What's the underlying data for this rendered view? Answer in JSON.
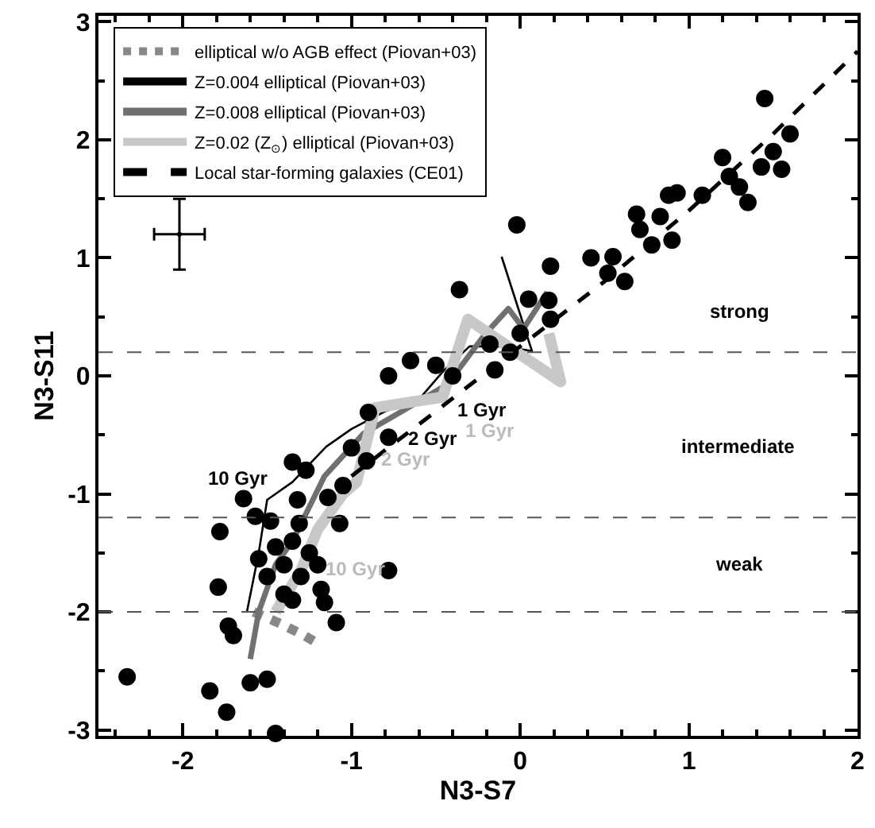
{
  "chart_data": {
    "type": "scatter",
    "xlabel": "N3-S7",
    "ylabel": "N3-S11",
    "xlim": [
      -2.5,
      2
    ],
    "ylim": [
      -3.05,
      3.05
    ],
    "xticks": [
      -2,
      -1,
      0,
      1,
      2
    ],
    "yticks": [
      -3,
      -2,
      -1,
      0,
      1,
      2,
      3
    ],
    "legend": "top left",
    "series": [
      {
        "name": "elliptical w/o AGB effect (Piovan+03)",
        "type": "line",
        "color": "#888888",
        "line_style": "dotted",
        "marker": "none",
        "x": [
          -1.58,
          -1.5,
          -1.42,
          -1.35,
          -1.28,
          -1.22
        ],
        "values": [
          -2.0,
          -2.05,
          -2.1,
          -2.15,
          -2.2,
          -2.25
        ]
      },
      {
        "name": "Z=0.004 elliptical (Piovan+03)",
        "type": "line",
        "color": "#000000",
        "line_style": "solid",
        "marker": "none",
        "x": [
          -1.62,
          -1.55,
          -1.5,
          -1.35,
          -1.25,
          -1.15,
          -1.0,
          -0.8,
          -0.6,
          -0.45,
          -0.3,
          -0.1,
          0.07,
          -0.11
        ],
        "values": [
          -2.0,
          -1.5,
          -1.05,
          -0.9,
          -0.75,
          -0.6,
          -0.45,
          -0.3,
          -0.2,
          0.05,
          0.25,
          0.25,
          0.21,
          1.01
        ]
      },
      {
        "name": "Z=0.008 elliptical (Piovan+03)",
        "type": "line",
        "color": "#707070",
        "line_style": "solid",
        "marker": "none",
        "x": [
          -1.6,
          -1.55,
          -1.45,
          -1.35,
          -1.16,
          -0.93,
          -0.7,
          -0.43,
          -0.21,
          -0.07,
          0.02,
          0.16
        ],
        "values": [
          -2.4,
          -2.0,
          -1.6,
          -1.4,
          -0.85,
          -0.49,
          -0.3,
          -0.07,
          0.35,
          0.57,
          0.4,
          0.71
        ]
      },
      {
        "name": "Z=0.02 (Z$_{⊙}$) elliptical (Piovan+03)",
        "type": "line",
        "color": "#c8c8c8",
        "line_style": "solid",
        "marker": "none",
        "x": [
          -1.45,
          -1.3,
          -1.2,
          -1.05,
          -0.97,
          -0.86,
          -0.46,
          -0.31,
          0.24,
          0.17
        ],
        "values": [
          -2.0,
          -1.65,
          -1.3,
          -1.0,
          -0.9,
          -0.27,
          -0.18,
          0.48,
          -0.05,
          0.36
        ]
      },
      {
        "name": "Local star-forming galaxies (CE01)",
        "type": "line",
        "color": "#000000",
        "line_style": "dashed",
        "marker": "none",
        "x": [
          -1.0,
          -0.5,
          0.0,
          0.5,
          1.0,
          1.5,
          2.0
        ],
        "values": [
          -0.85,
          -0.3,
          0.25,
          0.8,
          1.4,
          2.05,
          2.75
        ]
      },
      {
        "color": "#000000",
        "marker": "circle",
        "x": [
          -0.02,
          -0.36,
          0.18,
          0.05,
          0.17,
          0.18,
          0.0,
          -0.18,
          -0.65,
          -0.78,
          -0.5,
          -0.4,
          -0.15,
          -0.06,
          -0.9,
          -0.78,
          -1.0,
          -0.91,
          -1.35,
          -1.27,
          0.42,
          0.55,
          0.52,
          0.62,
          0.69,
          0.71,
          0.83,
          0.78,
          0.9,
          0.88,
          0.93,
          1.08,
          1.24,
          1.3,
          1.35,
          1.43,
          1.45,
          1.6,
          1.5,
          1.55,
          1.2,
          -1.64,
          -1.57,
          -1.32,
          -1.14,
          -1.05,
          -1.07,
          -1.31,
          -1.78,
          -1.48,
          -1.79,
          -1.18,
          -1.16,
          -1.09,
          -0.78,
          -1.73,
          -1.7,
          -2.33,
          -1.84,
          -1.74,
          -1.6,
          -1.5,
          -1.45,
          -1.45,
          -1.4,
          -1.35,
          -1.5,
          -1.3,
          -1.25,
          -1.4,
          -1.55,
          -1.2,
          -1.35
        ],
        "values": [
          1.28,
          0.73,
          0.93,
          0.65,
          0.64,
          0.48,
          0.36,
          0.27,
          0.13,
          0.0,
          0.09,
          0.0,
          0.05,
          0.2,
          -0.31,
          -0.52,
          -0.61,
          -0.72,
          -0.73,
          -0.8,
          1.0,
          1.01,
          0.87,
          0.8,
          1.37,
          1.24,
          1.35,
          1.11,
          1.15,
          1.53,
          1.55,
          1.53,
          1.69,
          1.6,
          1.47,
          1.77,
          2.35,
          2.05,
          1.9,
          1.75,
          1.85,
          -1.04,
          -1.19,
          -1.05,
          -1.03,
          -0.93,
          -1.25,
          -1.25,
          -1.32,
          -1.23,
          -1.79,
          -1.81,
          -1.92,
          -2.09,
          -1.65,
          -2.12,
          -2.2,
          -2.55,
          -2.67,
          -2.85,
          -2.6,
          -2.57,
          -3.03,
          -1.45,
          -1.6,
          -1.4,
          -1.7,
          -1.7,
          -1.5,
          -1.85,
          -1.55,
          -1.6,
          -1.9
        ]
      },
      {
        "color": "#000000",
        "marker": "none",
        "x": [
          -2.02
        ],
        "values": [
          1.2
        ],
        "errors": [
          0.3
        ],
        "xerrors": [
          0.15
        ]
      }
    ],
    "ref_lines": [
      {
        "axis": "y",
        "value": 0.2,
        "color": "#555555",
        "line_style": "dashed"
      },
      {
        "axis": "y",
        "value": -1.2,
        "color": "#555555",
        "line_style": "dashed"
      },
      {
        "axis": "y",
        "value": -2,
        "color": "#555555",
        "line_style": "dashed"
      }
    ],
    "annotations": [
      "strong",
      "intermediate",
      "weak",
      "1 Gyr",
      "1 Gyr",
      "2 Gyr",
      "2 Gyr",
      "10 Gyr",
      "10 Gyr"
    ]
  }
}
